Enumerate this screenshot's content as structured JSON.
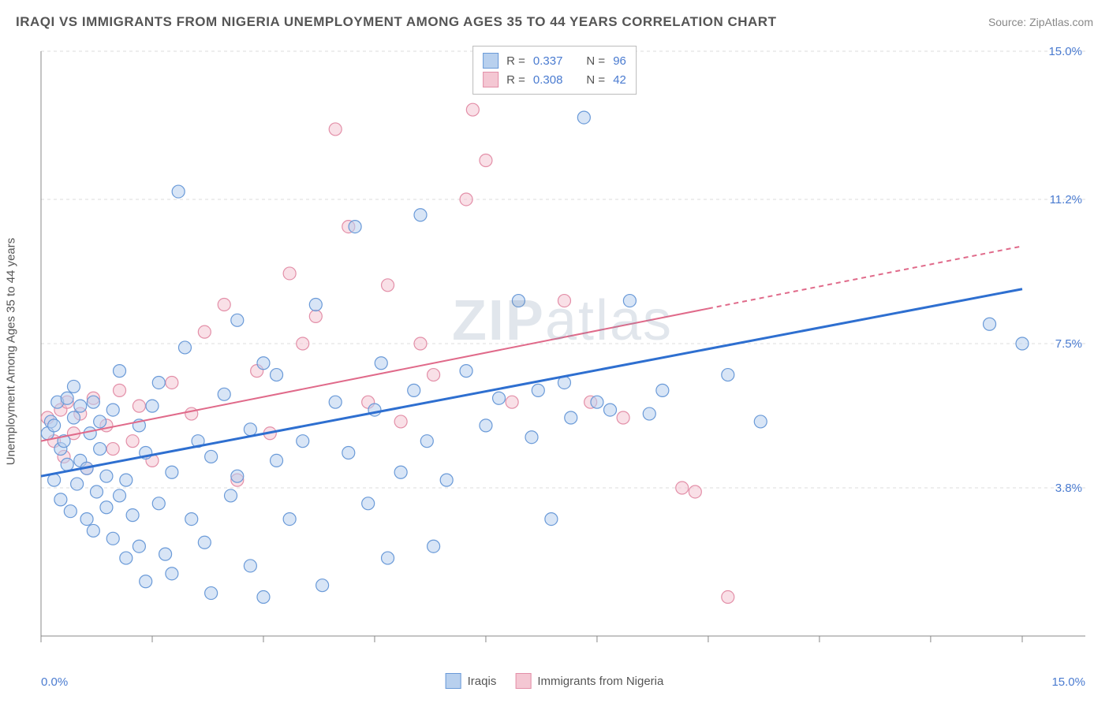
{
  "title": "IRAQI VS IMMIGRANTS FROM NIGERIA UNEMPLOYMENT AMONG AGES 35 TO 44 YEARS CORRELATION CHART",
  "source": "Source: ZipAtlas.com",
  "y_axis_label": "Unemployment Among Ages 35 to 44 years",
  "watermark_a": "ZIP",
  "watermark_b": "atlas",
  "chart": {
    "type": "scatter",
    "xlim": [
      0,
      15
    ],
    "ylim": [
      0,
      15
    ],
    "x_tick_labels": {
      "min": "0.0%",
      "max": "15.0%"
    },
    "y_ticks": [
      3.8,
      7.5,
      11.2,
      15.0
    ],
    "y_tick_labels": [
      "3.8%",
      "7.5%",
      "11.2%",
      "15.0%"
    ],
    "x_tick_positions": [
      0,
      1.7,
      3.4,
      5.1,
      6.8,
      8.5,
      10.2,
      11.9,
      13.6,
      15.0
    ],
    "background_color": "#ffffff",
    "grid_color": "#dddddd",
    "axis_color": "#888888",
    "label_color": "#4a7bd0",
    "marker_radius": 8,
    "marker_opacity": 0.55,
    "series": [
      {
        "name": "Iraqis",
        "color_fill": "#b8d0ee",
        "color_stroke": "#6a9ad8",
        "trend_color": "#2e6fd0",
        "trend_width": 3,
        "trend_dash": "none",
        "trend": {
          "x1": 0,
          "y1": 4.1,
          "x2": 15,
          "y2": 8.9
        },
        "stats": {
          "R": "0.337",
          "N": "96"
        },
        "points": [
          [
            0.1,
            5.2
          ],
          [
            0.15,
            5.5
          ],
          [
            0.2,
            4.0
          ],
          [
            0.2,
            5.4
          ],
          [
            0.25,
            6.0
          ],
          [
            0.3,
            3.5
          ],
          [
            0.3,
            4.8
          ],
          [
            0.35,
            5.0
          ],
          [
            0.4,
            4.4
          ],
          [
            0.4,
            6.1
          ],
          [
            0.45,
            3.2
          ],
          [
            0.5,
            5.6
          ],
          [
            0.5,
            6.4
          ],
          [
            0.55,
            3.9
          ],
          [
            0.6,
            4.5
          ],
          [
            0.6,
            5.9
          ],
          [
            0.7,
            3.0
          ],
          [
            0.7,
            4.3
          ],
          [
            0.75,
            5.2
          ],
          [
            0.8,
            2.7
          ],
          [
            0.8,
            6.0
          ],
          [
            0.85,
            3.7
          ],
          [
            0.9,
            4.8
          ],
          [
            0.9,
            5.5
          ],
          [
            1.0,
            3.3
          ],
          [
            1.0,
            4.1
          ],
          [
            1.1,
            2.5
          ],
          [
            1.1,
            5.8
          ],
          [
            1.2,
            3.6
          ],
          [
            1.2,
            6.8
          ],
          [
            1.3,
            4.0
          ],
          [
            1.3,
            2.0
          ],
          [
            1.4,
            3.1
          ],
          [
            1.5,
            5.4
          ],
          [
            1.5,
            2.3
          ],
          [
            1.6,
            4.7
          ],
          [
            1.6,
            1.4
          ],
          [
            1.7,
            5.9
          ],
          [
            1.8,
            3.4
          ],
          [
            1.8,
            6.5
          ],
          [
            1.9,
            2.1
          ],
          [
            2.0,
            4.2
          ],
          [
            2.0,
            1.6
          ],
          [
            2.1,
            11.4
          ],
          [
            2.2,
            7.4
          ],
          [
            2.3,
            3.0
          ],
          [
            2.4,
            5.0
          ],
          [
            2.5,
            2.4
          ],
          [
            2.6,
            4.6
          ],
          [
            2.6,
            1.1
          ],
          [
            2.8,
            6.2
          ],
          [
            2.9,
            3.6
          ],
          [
            3.0,
            4.1
          ],
          [
            3.0,
            8.1
          ],
          [
            3.2,
            1.8
          ],
          [
            3.2,
            5.3
          ],
          [
            3.4,
            7.0
          ],
          [
            3.4,
            1.0
          ],
          [
            3.6,
            4.5
          ],
          [
            3.6,
            6.7
          ],
          [
            3.8,
            3.0
          ],
          [
            4.0,
            5.0
          ],
          [
            4.2,
            8.5
          ],
          [
            4.3,
            1.3
          ],
          [
            4.5,
            6.0
          ],
          [
            4.7,
            4.7
          ],
          [
            4.8,
            10.5
          ],
          [
            5.0,
            3.4
          ],
          [
            5.1,
            5.8
          ],
          [
            5.2,
            7.0
          ],
          [
            5.3,
            2.0
          ],
          [
            5.5,
            4.2
          ],
          [
            5.7,
            6.3
          ],
          [
            5.8,
            10.8
          ],
          [
            5.9,
            5.0
          ],
          [
            6.0,
            2.3
          ],
          [
            6.2,
            4.0
          ],
          [
            6.5,
            6.8
          ],
          [
            6.8,
            5.4
          ],
          [
            7.0,
            6.1
          ],
          [
            7.3,
            8.6
          ],
          [
            7.5,
            5.1
          ],
          [
            7.6,
            6.3
          ],
          [
            7.8,
            3.0
          ],
          [
            8.0,
            6.5
          ],
          [
            8.1,
            5.6
          ],
          [
            8.3,
            13.3
          ],
          [
            8.5,
            6.0
          ],
          [
            8.7,
            5.8
          ],
          [
            9.0,
            8.6
          ],
          [
            9.3,
            5.7
          ],
          [
            9.5,
            6.3
          ],
          [
            10.5,
            6.7
          ],
          [
            11.0,
            5.5
          ],
          [
            14.5,
            8.0
          ],
          [
            15.0,
            7.5
          ]
        ]
      },
      {
        "name": "Immigrants from Nigeria",
        "color_fill": "#f4c7d3",
        "color_stroke": "#e38fa8",
        "trend_color": "#e06a8a",
        "trend_width": 2,
        "trend_dash": "solid_then_dash",
        "trend": {
          "x1": 0,
          "y1": 5.0,
          "x2": 15,
          "y2": 10.0
        },
        "trend_solid_end_x": 10.2,
        "stats": {
          "R": "0.308",
          "N": "42"
        },
        "points": [
          [
            0.1,
            5.6
          ],
          [
            0.2,
            5.0
          ],
          [
            0.3,
            5.8
          ],
          [
            0.35,
            4.6
          ],
          [
            0.4,
            6.0
          ],
          [
            0.5,
            5.2
          ],
          [
            0.6,
            5.7
          ],
          [
            0.7,
            4.3
          ],
          [
            0.8,
            6.1
          ],
          [
            1.0,
            5.4
          ],
          [
            1.1,
            4.8
          ],
          [
            1.2,
            6.3
          ],
          [
            1.4,
            5.0
          ],
          [
            1.5,
            5.9
          ],
          [
            1.7,
            4.5
          ],
          [
            2.0,
            6.5
          ],
          [
            2.3,
            5.7
          ],
          [
            2.5,
            7.8
          ],
          [
            2.8,
            8.5
          ],
          [
            3.0,
            4.0
          ],
          [
            3.3,
            6.8
          ],
          [
            3.5,
            5.2
          ],
          [
            3.8,
            9.3
          ],
          [
            4.0,
            7.5
          ],
          [
            4.2,
            8.2
          ],
          [
            4.5,
            13.0
          ],
          [
            4.7,
            10.5
          ],
          [
            5.0,
            6.0
          ],
          [
            5.3,
            9.0
          ],
          [
            5.5,
            5.5
          ],
          [
            5.8,
            7.5
          ],
          [
            6.0,
            6.7
          ],
          [
            6.5,
            11.2
          ],
          [
            6.6,
            13.5
          ],
          [
            6.8,
            12.2
          ],
          [
            7.2,
            6.0
          ],
          [
            8.0,
            8.6
          ],
          [
            8.4,
            6.0
          ],
          [
            8.9,
            5.6
          ],
          [
            9.8,
            3.8
          ],
          [
            10.0,
            3.7
          ],
          [
            10.5,
            1.0
          ]
        ]
      }
    ],
    "legend_labels": {
      "r": "R",
      "n": "N",
      "eq": "="
    }
  }
}
